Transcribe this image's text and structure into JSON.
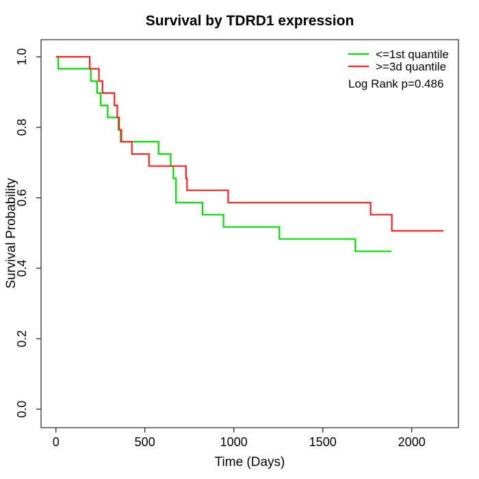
{
  "chart_data": {
    "type": "line",
    "variant": "kaplan_meier_step",
    "title": "Survival by TDRD1 expression",
    "xlabel": "Time (Days)",
    "ylabel": "Survival Probability",
    "xticks": [
      0,
      500,
      1000,
      1500,
      2000
    ],
    "yticks": [
      0.0,
      0.2,
      0.4,
      0.6,
      0.8,
      1.0
    ],
    "ytick_labels": [
      "0.0",
      "0.2",
      "0.4",
      "0.6",
      "0.8",
      "1.0"
    ],
    "xlim": [
      0,
      2260
    ],
    "ylim": [
      0.0,
      1.0
    ],
    "grid": false,
    "legend_position": "top-right",
    "annotation": "Log Rank p=0.486",
    "axis_color": "#333333",
    "series": [
      {
        "name": "<=1st quantile",
        "color": "#00DD00",
        "steps": [
          [
            0,
            1.0
          ],
          [
            13,
            0.966
          ],
          [
            196,
            0.931
          ],
          [
            231,
            0.897
          ],
          [
            252,
            0.862
          ],
          [
            291,
            0.828
          ],
          [
            351,
            0.793
          ],
          [
            364,
            0.759
          ],
          [
            577,
            0.724
          ],
          [
            645,
            0.69
          ],
          [
            660,
            0.655
          ],
          [
            675,
            0.586
          ],
          [
            824,
            0.552
          ],
          [
            942,
            0.517
          ],
          [
            1256,
            0.483
          ],
          [
            1683,
            0.448
          ],
          [
            1886,
            0.448
          ]
        ]
      },
      {
        "name": ">=3d quantile",
        "color": "#FF2020",
        "steps": [
          [
            0,
            1.0
          ],
          [
            190,
            0.966
          ],
          [
            242,
            0.931
          ],
          [
            262,
            0.897
          ],
          [
            329,
            0.862
          ],
          [
            345,
            0.828
          ],
          [
            355,
            0.793
          ],
          [
            368,
            0.759
          ],
          [
            427,
            0.724
          ],
          [
            523,
            0.69
          ],
          [
            731,
            0.655
          ],
          [
            737,
            0.621
          ],
          [
            968,
            0.586
          ],
          [
            1769,
            0.552
          ],
          [
            1888,
            0.506
          ],
          [
            2179,
            0.506
          ]
        ]
      }
    ]
  }
}
